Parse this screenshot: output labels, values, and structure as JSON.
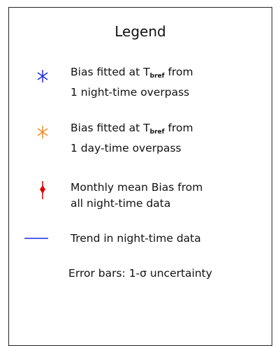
{
  "legend": {
    "title": "Legend",
    "entries": [
      {
        "text": "Bias fitted at T",
        "subscript": "bref",
        "text_after": " from",
        "second_line": "1 night-time overpass"
      },
      {
        "text": "Bias fitted at T",
        "subscript": "bref",
        "text_after": " from",
        "second_line": "1 day-time overpass"
      },
      {
        "text": "Monthly mean Bias from",
        "second_line": "all night-time data"
      },
      {
        "text": "Trend in night-time data"
      }
    ],
    "footnote": "Error bars: 1-σ uncertainty"
  }
}
